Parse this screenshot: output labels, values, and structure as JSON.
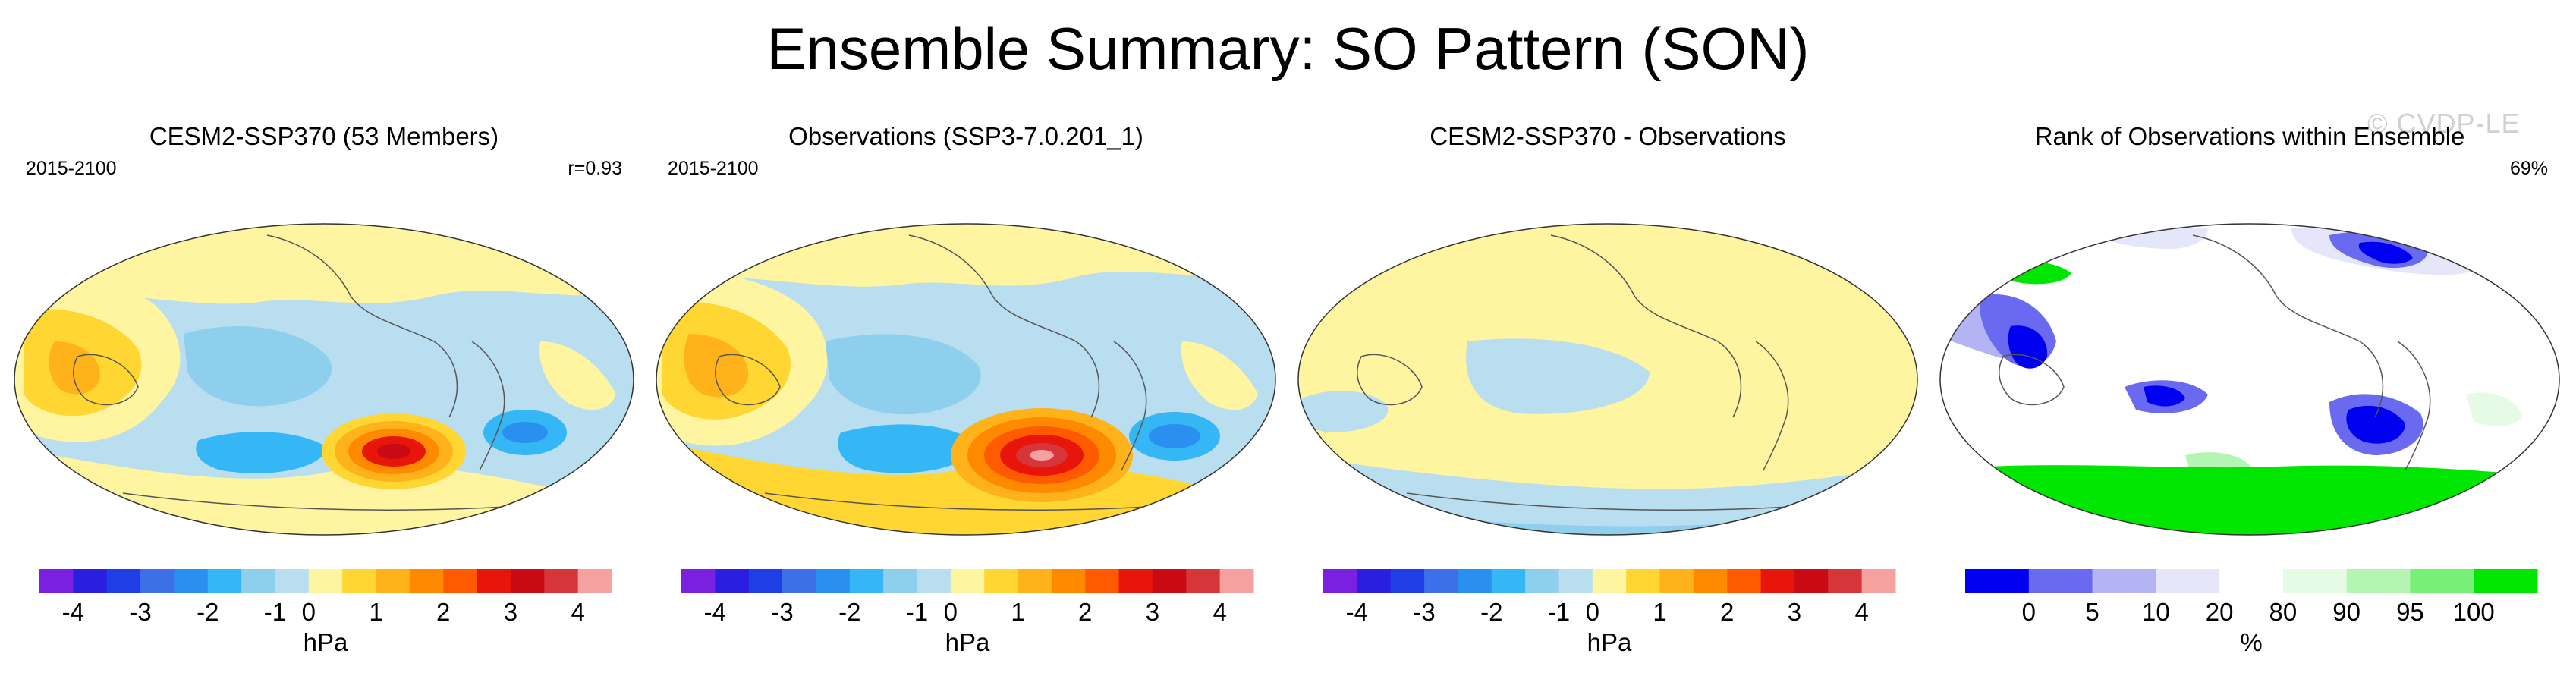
{
  "figure": {
    "title": "Ensemble Summary: SO Pattern (SON)",
    "watermark": "© CVDP-LE"
  },
  "panels": [
    {
      "id": "model",
      "title": "CESM2-SSP370 (53 Members)",
      "period": "2015-2100",
      "stat": "r=0.93",
      "colorbar": {
        "colors": [
          "#7b1fe0",
          "#2a1ee0",
          "#1e3fe6",
          "#3d6fe8",
          "#2a90f0",
          "#35b7f5",
          "#8fcfee",
          "#b9def0",
          "#fff5a0",
          "#ffd632",
          "#ffb21a",
          "#ff8a00",
          "#ff5a00",
          "#e8150a",
          "#c80a14",
          "#d6353a",
          "#f7a0a0"
        ],
        "ticks": [
          "-4",
          "-3",
          "-2",
          "-1",
          "0",
          "1",
          "2",
          "3",
          "4"
        ],
        "label": "hPa"
      }
    },
    {
      "id": "obs",
      "title": "Observations (SSP3-7.0.201_1)",
      "period": "2015-2100",
      "stat": "",
      "colorbar": {
        "colors": [
          "#7b1fe0",
          "#2a1ee0",
          "#1e3fe6",
          "#3d6fe8",
          "#2a90f0",
          "#35b7f5",
          "#8fcfee",
          "#b9def0",
          "#fff5a0",
          "#ffd632",
          "#ffb21a",
          "#ff8a00",
          "#ff5a00",
          "#e8150a",
          "#c80a14",
          "#d6353a",
          "#f7a0a0"
        ],
        "ticks": [
          "-4",
          "-3",
          "-2",
          "-1",
          "0",
          "1",
          "2",
          "3",
          "4"
        ],
        "label": "hPa"
      }
    },
    {
      "id": "diff",
      "title": "CESM2-SSP370 - Observations",
      "period": "",
      "stat": "",
      "colorbar": {
        "colors": [
          "#7b1fe0",
          "#2a1ee0",
          "#1e3fe6",
          "#3d6fe8",
          "#2a90f0",
          "#35b7f5",
          "#8fcfee",
          "#b9def0",
          "#fff5a0",
          "#ffd632",
          "#ffb21a",
          "#ff8a00",
          "#ff5a00",
          "#e8150a",
          "#c80a14",
          "#d6353a",
          "#f7a0a0"
        ],
        "ticks": [
          "-4",
          "-3",
          "-2",
          "-1",
          "0",
          "1",
          "2",
          "3",
          "4"
        ],
        "label": "hPa"
      }
    },
    {
      "id": "rank",
      "title": "Rank of Observations within Ensemble",
      "period": "",
      "stat": "69%",
      "colorbar": {
        "colors": [
          "#0000f0",
          "#6a6af0",
          "#b4b4f5",
          "#e6e6fa",
          "#ffffff",
          "#e6fbe6",
          "#b4f5b4",
          "#78f078",
          "#00e600"
        ],
        "ticks": [
          "0",
          "5",
          "10",
          "20",
          "80",
          "90",
          "95",
          "100"
        ],
        "label": "%"
      }
    }
  ]
}
